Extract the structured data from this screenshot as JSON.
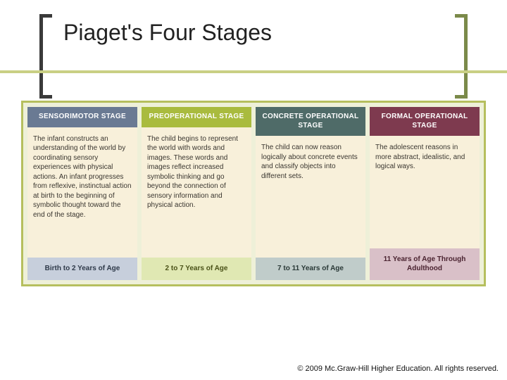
{
  "title": "Piaget's Four Stages",
  "copyright": "© 2009 Mc.Graw-Hill Higher Education. All rights reserved.",
  "colors": {
    "bracket_left": "#3a3a3a",
    "bracket_right": "#7b8a4a",
    "underline": "#c9cf84",
    "frame_border": "#b6bf5e",
    "frame_bg": "#eef0d8",
    "body_bg": "#f8f0da"
  },
  "columns": [
    {
      "header": "SENSORIMOTOR STAGE",
      "body": "The infant constructs an understanding of the world by coordinating sensory experiences with physical actions. An infant progresses from reflexive, instinctual action at birth to the beginning of symbolic thought toward the end of the stage.",
      "footer": "Birth to 2 Years of Age",
      "header_bg": "#6a7a93",
      "footer_bg": "#c7cfdc",
      "footer_color": "#2f3a4a"
    },
    {
      "header": "PREOPERATIONAL STAGE",
      "body": "The child begins to represent the world with words and images. These words and images reflect increased symbolic thinking and go beyond the connection of sensory information and physical action.",
      "footer": "2 to 7 Years of Age",
      "header_bg": "#a9bb3e",
      "footer_bg": "#e0e8b3",
      "footer_color": "#4a5218"
    },
    {
      "header": "CONCRETE OPERATIONAL STAGE",
      "body": "The child can now reason logically about concrete events and classify objects into different sets.",
      "footer": "7 to 11 Years of Age",
      "header_bg": "#4f6b68",
      "footer_bg": "#c0ccca",
      "footer_color": "#2a3937"
    },
    {
      "header": "FORMAL OPERATIONAL STAGE",
      "body": "The adolescent reasons in more abstract, idealistic, and logical ways.",
      "footer": "11 Years of Age Through Adulthood",
      "header_bg": "#7e3a4f",
      "footer_bg": "#d9c0c8",
      "footer_color": "#4a2330"
    }
  ]
}
